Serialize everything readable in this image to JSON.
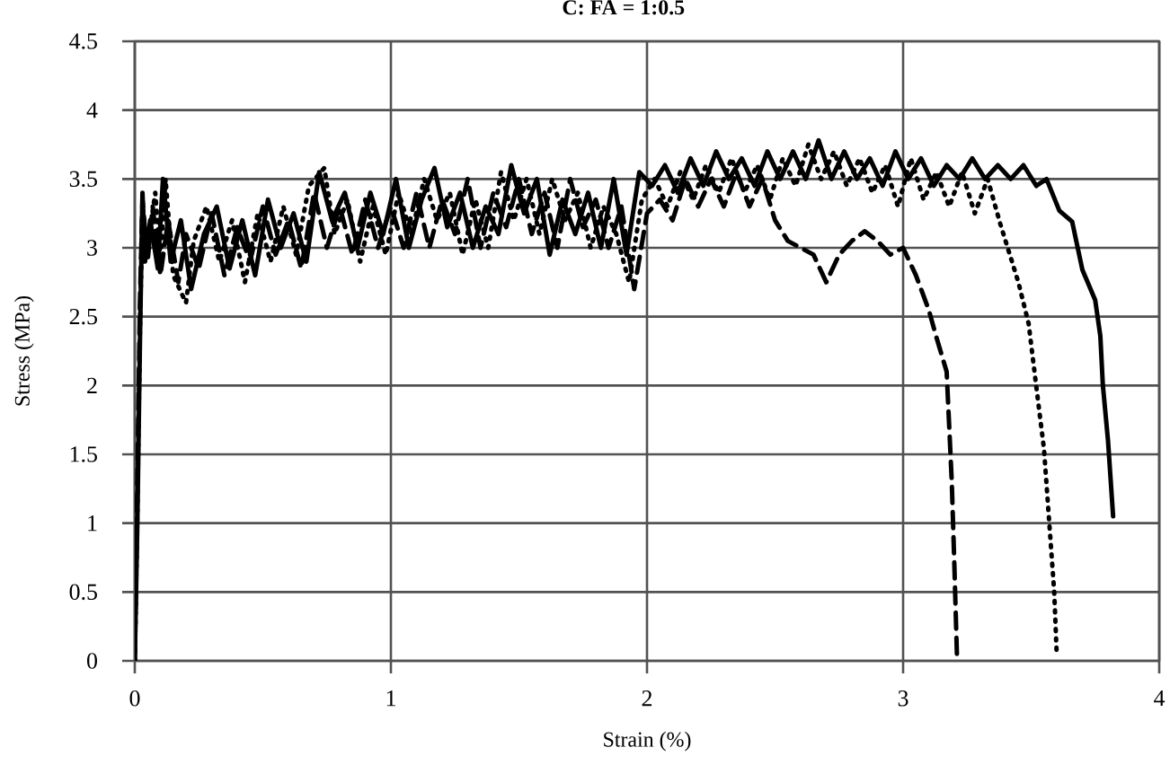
{
  "chart_data": {
    "type": "line",
    "title": "C: FA = 1:0.5",
    "xlabel": "Strain (%)",
    "ylabel": "Stress (MPa)",
    "xlim": [
      0,
      4
    ],
    "ylim": [
      0,
      4.5
    ],
    "xticks": [
      0,
      1,
      2,
      3,
      4
    ],
    "yticks": [
      0,
      0.5,
      1,
      1.5,
      2,
      2.5,
      3,
      3.5,
      4,
      4.5
    ],
    "grid": true,
    "series": [
      {
        "color": "#000000",
        "line_style": "dashed",
        "x": [
          0,
          0.01,
          0.02,
          0.03,
          0.05,
          0.07,
          0.1,
          0.13,
          0.17,
          0.2,
          0.25,
          0.3,
          0.35,
          0.4,
          0.45,
          0.5,
          0.55,
          0.6,
          0.65,
          0.7,
          0.75,
          0.8,
          0.85,
          0.9,
          0.95,
          1.0,
          1.05,
          1.1,
          1.15,
          1.2,
          1.25,
          1.3,
          1.35,
          1.4,
          1.45,
          1.5,
          1.55,
          1.6,
          1.65,
          1.7,
          1.75,
          1.8,
          1.85,
          1.9,
          1.95,
          2.0,
          2.05,
          2.1,
          2.15,
          2.2,
          2.25,
          2.3,
          2.35,
          2.4,
          2.45,
          2.5,
          2.55,
          2.6,
          2.65,
          2.7,
          2.75,
          2.8,
          2.85,
          2.9,
          2.95,
          3.0,
          3.05,
          3.1,
          3.13,
          3.17,
          3.19,
          3.2,
          3.21
        ],
        "values": [
          0,
          1.3,
          2.6,
          3.35,
          2.9,
          3.3,
          2.8,
          3.2,
          2.75,
          3.1,
          2.85,
          3.25,
          2.8,
          3.15,
          2.9,
          3.3,
          2.95,
          3.2,
          2.85,
          3.4,
          3.0,
          3.3,
          2.95,
          3.35,
          3.0,
          3.3,
          3.0,
          3.4,
          3.0,
          3.35,
          3.1,
          3.5,
          3.0,
          3.4,
          3.15,
          3.5,
          3.1,
          3.4,
          3.0,
          3.5,
          3.15,
          3.35,
          3.0,
          3.3,
          2.7,
          3.25,
          3.35,
          3.2,
          3.5,
          3.3,
          3.5,
          3.3,
          3.55,
          3.3,
          3.5,
          3.2,
          3.05,
          3.0,
          2.95,
          2.75,
          2.95,
          3.05,
          3.12,
          3.05,
          2.95,
          3.0,
          2.8,
          2.55,
          2.35,
          2.1,
          1.3,
          0.7,
          0.05
        ]
      },
      {
        "color": "#000000",
        "line_style": "dotted",
        "x": [
          0,
          0.01,
          0.02,
          0.03,
          0.05,
          0.08,
          0.1,
          0.12,
          0.15,
          0.2,
          0.23,
          0.28,
          0.33,
          0.38,
          0.43,
          0.48,
          0.53,
          0.58,
          0.63,
          0.68,
          0.74,
          0.78,
          0.83,
          0.88,
          0.93,
          0.98,
          1.03,
          1.08,
          1.13,
          1.18,
          1.23,
          1.28,
          1.33,
          1.38,
          1.43,
          1.48,
          1.53,
          1.58,
          1.63,
          1.68,
          1.73,
          1.78,
          1.83,
          1.88,
          1.93,
          1.98,
          2.03,
          2.08,
          2.13,
          2.18,
          2.23,
          2.28,
          2.33,
          2.38,
          2.43,
          2.48,
          2.53,
          2.58,
          2.63,
          2.68,
          2.73,
          2.78,
          2.83,
          2.88,
          2.93,
          2.98,
          3.03,
          3.08,
          3.13,
          3.18,
          3.23,
          3.28,
          3.33,
          3.38,
          3.45,
          3.49,
          3.53,
          3.55,
          3.57,
          3.59,
          3.6
        ],
        "values": [
          0,
          1.1,
          2.4,
          3.3,
          3.0,
          3.4,
          2.9,
          3.5,
          2.8,
          2.6,
          3.05,
          3.3,
          2.9,
          3.2,
          2.75,
          3.25,
          2.9,
          3.3,
          2.95,
          3.45,
          3.58,
          3.1,
          3.35,
          2.9,
          3.3,
          2.95,
          3.4,
          3.1,
          3.5,
          3.2,
          3.4,
          2.95,
          3.35,
          3.0,
          3.55,
          3.2,
          3.5,
          3.1,
          3.5,
          3.2,
          3.4,
          3.0,
          3.3,
          3.1,
          2.75,
          3.35,
          3.5,
          3.3,
          3.55,
          3.35,
          3.6,
          3.4,
          3.65,
          3.4,
          3.6,
          3.35,
          3.65,
          3.45,
          3.75,
          3.5,
          3.7,
          3.45,
          3.65,
          3.4,
          3.6,
          3.3,
          3.65,
          3.35,
          3.55,
          3.3,
          3.55,
          3.25,
          3.5,
          3.17,
          2.75,
          2.45,
          1.84,
          1.54,
          1.02,
          0.5,
          0.03
        ]
      },
      {
        "color": "#000000",
        "line_style": "solid",
        "x": [
          0,
          0.01,
          0.02,
          0.03,
          0.04,
          0.06,
          0.09,
          0.11,
          0.14,
          0.18,
          0.22,
          0.27,
          0.32,
          0.37,
          0.42,
          0.47,
          0.52,
          0.57,
          0.62,
          0.67,
          0.72,
          0.77,
          0.82,
          0.87,
          0.92,
          0.97,
          1.02,
          1.07,
          1.12,
          1.17,
          1.22,
          1.27,
          1.32,
          1.37,
          1.42,
          1.47,
          1.52,
          1.57,
          1.62,
          1.67,
          1.72,
          1.77,
          1.82,
          1.87,
          1.92,
          1.97,
          2.02,
          2.07,
          2.12,
          2.17,
          2.22,
          2.27,
          2.32,
          2.37,
          2.42,
          2.47,
          2.52,
          2.57,
          2.62,
          2.67,
          2.72,
          2.77,
          2.82,
          2.87,
          2.92,
          2.97,
          3.02,
          3.07,
          3.12,
          3.17,
          3.22,
          3.27,
          3.32,
          3.37,
          3.42,
          3.47,
          3.52,
          3.56,
          3.61,
          3.66,
          3.7,
          3.75,
          3.77,
          3.78,
          3.8,
          3.82
        ],
        "values": [
          0,
          1.0,
          2.3,
          3.4,
          2.9,
          3.2,
          2.85,
          3.5,
          2.9,
          3.2,
          2.7,
          3.1,
          3.3,
          2.85,
          3.2,
          2.8,
          3.35,
          3.0,
          3.25,
          2.9,
          3.55,
          3.2,
          3.4,
          3.0,
          3.4,
          3.1,
          3.5,
          3.0,
          3.35,
          3.58,
          3.15,
          3.4,
          3.0,
          3.3,
          3.1,
          3.6,
          3.25,
          3.5,
          2.95,
          3.35,
          3.1,
          3.4,
          3.0,
          3.5,
          2.95,
          3.55,
          3.45,
          3.6,
          3.4,
          3.65,
          3.45,
          3.7,
          3.5,
          3.65,
          3.45,
          3.7,
          3.5,
          3.7,
          3.5,
          3.78,
          3.5,
          3.7,
          3.5,
          3.65,
          3.45,
          3.7,
          3.5,
          3.65,
          3.45,
          3.6,
          3.5,
          3.65,
          3.5,
          3.6,
          3.5,
          3.6,
          3.45,
          3.5,
          3.27,
          3.19,
          2.84,
          2.62,
          2.36,
          2.0,
          1.6,
          1.05
        ]
      }
    ]
  }
}
